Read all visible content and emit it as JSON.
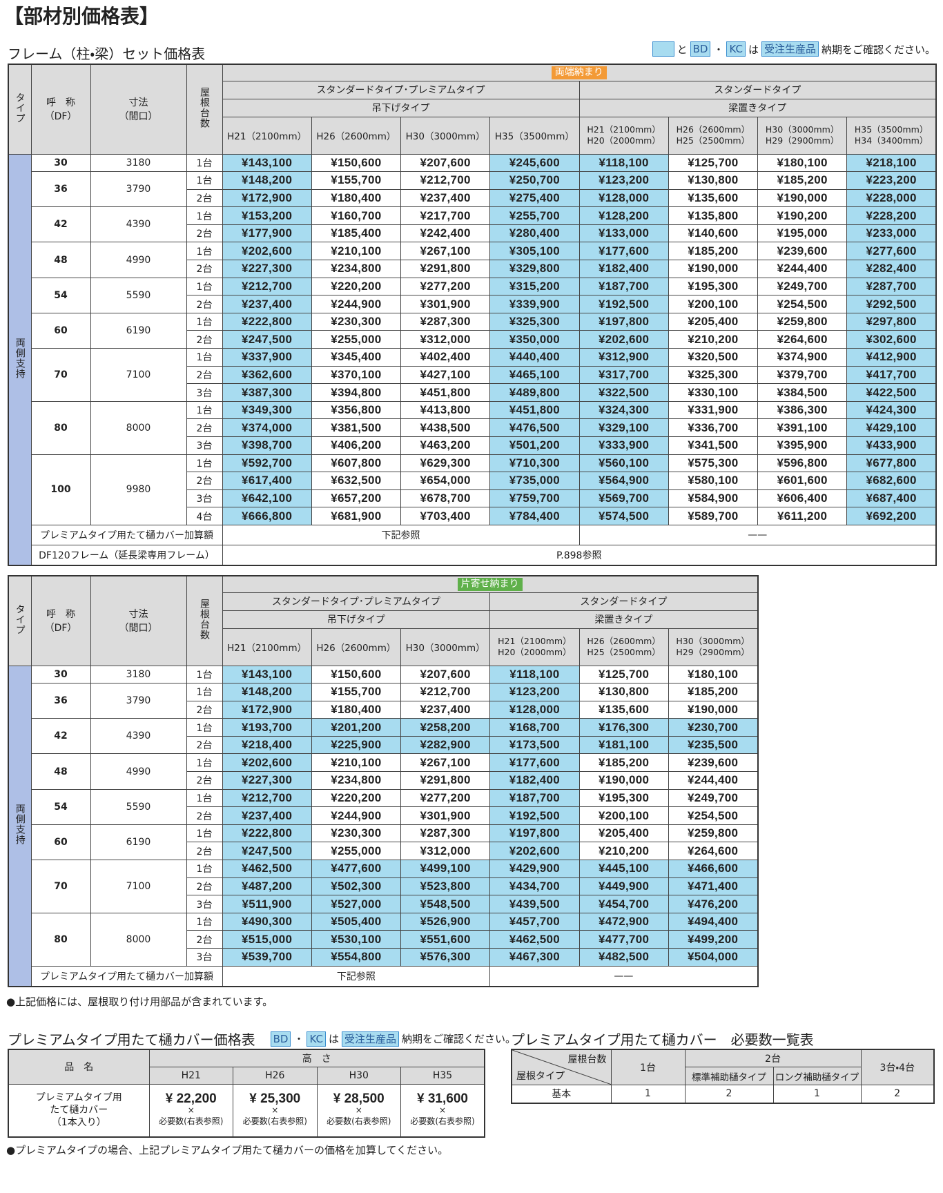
{
  "header": {
    "title": "【部材別価格表】",
    "subtitle": "フレーム（柱・梁）セット価格表"
  },
  "notice": {
    "and": "と",
    "bd": "BD",
    "dot": "・",
    "kc": "KC",
    "wa": "は",
    "made_to_order": "受注生産品",
    "text": "納期をご確認ください。"
  },
  "table1": {
    "badge": "両端納まり",
    "badge_color": "#f39a36",
    "type_label": "タイプ",
    "name_label": [
      "呼　称",
      "（DF）"
    ],
    "size_label": [
      "寸法",
      "（間口）"
    ],
    "roof_label": "屋根台数",
    "group_left": "スタンダードタイプ･プレミアムタイプ",
    "sub_left": "吊下げタイプ",
    "group_right": "スタンダードタイプ",
    "sub_right": "梁置きタイプ",
    "heights_left": [
      "H21（2100mm）",
      "H26（2600mm）",
      "H30（3000mm）",
      "H35（3500mm）"
    ],
    "heights_right": [
      [
        "H21（2100mm）",
        "H20（2000mm）"
      ],
      [
        "H26（2600mm）",
        "H25（2500mm）"
      ],
      [
        "H30（3000mm）",
        "H29（2900mm）"
      ],
      [
        "H35（3500mm）",
        "H34（3400mm）"
      ]
    ],
    "highlight_columns": [
      0,
      3,
      4,
      7
    ],
    "support": "両側支持",
    "groups": [
      {
        "df": "30",
        "size": "3180",
        "rows": [
          {
            "count": "1台",
            "prices": [
              "¥143,100",
              "¥150,600",
              "¥207,600",
              "¥245,600",
              "¥118,100",
              "¥125,700",
              "¥180,100",
              "¥218,100"
            ]
          }
        ]
      },
      {
        "df": "36",
        "size": "3790",
        "rows": [
          {
            "count": "1台",
            "prices": [
              "¥148,200",
              "¥155,700",
              "¥212,700",
              "¥250,700",
              "¥123,200",
              "¥130,800",
              "¥185,200",
              "¥223,200"
            ]
          },
          {
            "count": "2台",
            "prices": [
              "¥172,900",
              "¥180,400",
              "¥237,400",
              "¥275,400",
              "¥128,000",
              "¥135,600",
              "¥190,000",
              "¥228,000"
            ]
          }
        ]
      },
      {
        "df": "42",
        "size": "4390",
        "rows": [
          {
            "count": "1台",
            "prices": [
              "¥153,200",
              "¥160,700",
              "¥217,700",
              "¥255,700",
              "¥128,200",
              "¥135,800",
              "¥190,200",
              "¥228,200"
            ]
          },
          {
            "count": "2台",
            "prices": [
              "¥177,900",
              "¥185,400",
              "¥242,400",
              "¥280,400",
              "¥133,000",
              "¥140,600",
              "¥195,000",
              "¥233,000"
            ]
          }
        ]
      },
      {
        "df": "48",
        "size": "4990",
        "rows": [
          {
            "count": "1台",
            "prices": [
              "¥202,600",
              "¥210,100",
              "¥267,100",
              "¥305,100",
              "¥177,600",
              "¥185,200",
              "¥239,600",
              "¥277,600"
            ]
          },
          {
            "count": "2台",
            "prices": [
              "¥227,300",
              "¥234,800",
              "¥291,800",
              "¥329,800",
              "¥182,400",
              "¥190,000",
              "¥244,400",
              "¥282,400"
            ]
          }
        ]
      },
      {
        "df": "54",
        "size": "5590",
        "rows": [
          {
            "count": "1台",
            "prices": [
              "¥212,700",
              "¥220,200",
              "¥277,200",
              "¥315,200",
              "¥187,700",
              "¥195,300",
              "¥249,700",
              "¥287,700"
            ]
          },
          {
            "count": "2台",
            "prices": [
              "¥237,400",
              "¥244,900",
              "¥301,900",
              "¥339,900",
              "¥192,500",
              "¥200,100",
              "¥254,500",
              "¥292,500"
            ]
          }
        ]
      },
      {
        "df": "60",
        "size": "6190",
        "rows": [
          {
            "count": "1台",
            "prices": [
              "¥222,800",
              "¥230,300",
              "¥287,300",
              "¥325,300",
              "¥197,800",
              "¥205,400",
              "¥259,800",
              "¥297,800"
            ]
          },
          {
            "count": "2台",
            "prices": [
              "¥247,500",
              "¥255,000",
              "¥312,000",
              "¥350,000",
              "¥202,600",
              "¥210,200",
              "¥264,600",
              "¥302,600"
            ]
          }
        ]
      },
      {
        "df": "70",
        "size": "7100",
        "rows": [
          {
            "count": "1台",
            "prices": [
              "¥337,900",
              "¥345,400",
              "¥402,400",
              "¥440,400",
              "¥312,900",
              "¥320,500",
              "¥374,900",
              "¥412,900"
            ]
          },
          {
            "count": "2台",
            "prices": [
              "¥362,600",
              "¥370,100",
              "¥427,100",
              "¥465,100",
              "¥317,700",
              "¥325,300",
              "¥379,700",
              "¥417,700"
            ]
          },
          {
            "count": "3台",
            "prices": [
              "¥387,300",
              "¥394,800",
              "¥451,800",
              "¥489,800",
              "¥322,500",
              "¥330,100",
              "¥384,500",
              "¥422,500"
            ]
          }
        ]
      },
      {
        "df": "80",
        "size": "8000",
        "rows": [
          {
            "count": "1台",
            "prices": [
              "¥349,300",
              "¥356,800",
              "¥413,800",
              "¥451,800",
              "¥324,300",
              "¥331,900",
              "¥386,300",
              "¥424,300"
            ]
          },
          {
            "count": "2台",
            "prices": [
              "¥374,000",
              "¥381,500",
              "¥438,500",
              "¥476,500",
              "¥329,100",
              "¥336,700",
              "¥391,100",
              "¥429,100"
            ]
          },
          {
            "count": "3台",
            "prices": [
              "¥398,700",
              "¥406,200",
              "¥463,200",
              "¥501,200",
              "¥333,900",
              "¥341,500",
              "¥395,900",
              "¥433,900"
            ]
          }
        ]
      },
      {
        "df": "100",
        "size": "9980",
        "rows": [
          {
            "count": "1台",
            "prices": [
              "¥592,700",
              "¥607,800",
              "¥629,300",
              "¥710,300",
              "¥560,100",
              "¥575,300",
              "¥596,800",
              "¥677,800"
            ]
          },
          {
            "count": "2台",
            "prices": [
              "¥617,400",
              "¥632,500",
              "¥654,000",
              "¥735,000",
              "¥564,900",
              "¥580,100",
              "¥601,600",
              "¥682,600"
            ]
          },
          {
            "count": "3台",
            "prices": [
              "¥642,100",
              "¥657,200",
              "¥678,700",
              "¥759,700",
              "¥569,700",
              "¥584,900",
              "¥606,400",
              "¥687,400"
            ]
          },
          {
            "count": "4台",
            "prices": [
              "¥666,800",
              "¥681,900",
              "¥703,400",
              "¥784,400",
              "¥574,500",
              "¥589,700",
              "¥611,200",
              "¥692,200"
            ]
          }
        ]
      }
    ],
    "footers": [
      {
        "label": "プレミアムタイプ用たて樋カバー加算額",
        "cells": [
          "下記参照",
          "——"
        ]
      },
      {
        "label": "DF120フレーム（延長梁専用フレーム）",
        "cells": [
          "P.898参照"
        ]
      }
    ]
  },
  "table2": {
    "badge": "片寄せ納まり",
    "badge_color": "#5fb04a",
    "type_label": "タイプ",
    "name_label": [
      "呼　称",
      "（DF）"
    ],
    "size_label": [
      "寸法",
      "（間口）"
    ],
    "roof_label": "屋根台数",
    "group_left": "スタンダードタイプ･プレミアムタイプ",
    "sub_left": "吊下げタイプ",
    "group_right": "スタンダードタイプ",
    "sub_right": "梁置きタイプ",
    "heights_left": [
      "H21（2100mm）",
      "H26（2600mm）",
      "H30（3000mm）"
    ],
    "heights_right": [
      [
        "H21（2100mm）",
        "H20（2000mm）"
      ],
      [
        "H26（2600mm）",
        "H25（2500mm）"
      ],
      [
        "H30（3000mm）",
        "H29（2900mm）"
      ]
    ],
    "highlight_columns": [
      0,
      3
    ],
    "support": "両側支持",
    "groups": [
      {
        "df": "30",
        "size": "3180",
        "rows": [
          {
            "count": "1台",
            "prices": [
              "¥143,100",
              "¥150,600",
              "¥207,600",
              "¥118,100",
              "¥125,700",
              "¥180,100"
            ]
          }
        ]
      },
      {
        "df": "36",
        "size": "3790",
        "rows": [
          {
            "count": "1台",
            "prices": [
              "¥148,200",
              "¥155,700",
              "¥212,700",
              "¥123,200",
              "¥130,800",
              "¥185,200"
            ]
          },
          {
            "count": "2台",
            "prices": [
              "¥172,900",
              "¥180,400",
              "¥237,400",
              "¥128,000",
              "¥135,600",
              "¥190,000"
            ]
          }
        ]
      },
      {
        "df": "42",
        "size": "4390",
        "highlight": "all",
        "rows": [
          {
            "count": "1台",
            "prices": [
              "¥193,700",
              "¥201,200",
              "¥258,200",
              "¥168,700",
              "¥176,300",
              "¥230,700"
            ]
          },
          {
            "count": "2台",
            "prices": [
              "¥218,400",
              "¥225,900",
              "¥282,900",
              "¥173,500",
              "¥181,100",
              "¥235,500"
            ]
          }
        ]
      },
      {
        "df": "48",
        "size": "4990",
        "rows": [
          {
            "count": "1台",
            "prices": [
              "¥202,600",
              "¥210,100",
              "¥267,100",
              "¥177,600",
              "¥185,200",
              "¥239,600"
            ]
          },
          {
            "count": "2台",
            "prices": [
              "¥227,300",
              "¥234,800",
              "¥291,800",
              "¥182,400",
              "¥190,000",
              "¥244,400"
            ]
          }
        ]
      },
      {
        "df": "54",
        "size": "5590",
        "rows": [
          {
            "count": "1台",
            "prices": [
              "¥212,700",
              "¥220,200",
              "¥277,200",
              "¥187,700",
              "¥195,300",
              "¥249,700"
            ]
          },
          {
            "count": "2台",
            "prices": [
              "¥237,400",
              "¥244,900",
              "¥301,900",
              "¥192,500",
              "¥200,100",
              "¥254,500"
            ]
          }
        ]
      },
      {
        "df": "60",
        "size": "6190",
        "rows": [
          {
            "count": "1台",
            "prices": [
              "¥222,800",
              "¥230,300",
              "¥287,300",
              "¥197,800",
              "¥205,400",
              "¥259,800"
            ]
          },
          {
            "count": "2台",
            "prices": [
              "¥247,500",
              "¥255,000",
              "¥312,000",
              "¥202,600",
              "¥210,200",
              "¥264,600"
            ]
          }
        ]
      },
      {
        "df": "70",
        "size": "7100",
        "highlight": "all",
        "rows": [
          {
            "count": "1台",
            "prices": [
              "¥462,500",
              "¥477,600",
              "¥499,100",
              "¥429,900",
              "¥445,100",
              "¥466,600"
            ]
          },
          {
            "count": "2台",
            "prices": [
              "¥487,200",
              "¥502,300",
              "¥523,800",
              "¥434,700",
              "¥449,900",
              "¥471,400"
            ]
          },
          {
            "count": "3台",
            "prices": [
              "¥511,900",
              "¥527,000",
              "¥548,500",
              "¥439,500",
              "¥454,700",
              "¥476,200"
            ]
          }
        ]
      },
      {
        "df": "80",
        "size": "8000",
        "highlight": "all",
        "rows": [
          {
            "count": "1台",
            "prices": [
              "¥490,300",
              "¥505,400",
              "¥526,900",
              "¥457,700",
              "¥472,900",
              "¥494,400"
            ]
          },
          {
            "count": "2台",
            "prices": [
              "¥515,000",
              "¥530,100",
              "¥551,600",
              "¥462,500",
              "¥477,700",
              "¥499,200"
            ]
          },
          {
            "count": "3台",
            "prices": [
              "¥539,700",
              "¥554,800",
              "¥576,300",
              "¥467,300",
              "¥482,500",
              "¥504,000"
            ]
          }
        ]
      }
    ],
    "footers": [
      {
        "label": "プレミアムタイプ用たて樋カバー加算額",
        "cells": [
          "下記参照",
          "——"
        ]
      }
    ]
  },
  "note1": "●上記価格には、屋根取り付け用部品が含まれています。",
  "cover": {
    "title": "プレミアムタイプ用たて樋カバー価格表",
    "item_header": "品　名",
    "height_header": "高　さ",
    "heights": [
      "H21",
      "H26",
      "H30",
      "H35"
    ],
    "item": [
      "プレミアムタイプ用",
      "たて樋カバー",
      "（1本入り）"
    ],
    "prices": [
      "¥ 22,200",
      "¥ 25,300",
      "¥ 28,500",
      "¥ 31,600"
    ],
    "times": "×",
    "required": "必要数(右表参照)"
  },
  "required": {
    "title": "プレミアムタイプ用たて樋カバー　必要数一覧表",
    "corner_top": "屋根台数",
    "corner_bottom": "屋根タイプ",
    "col1": "1台",
    "col2": "2台",
    "col2_sub": [
      "標準補助樋タイプ",
      "ロング補助樋タイプ"
    ],
    "col3": "3台・4台",
    "row_label": "基本",
    "values": [
      "1",
      "2",
      "1",
      "2"
    ]
  },
  "note2": "●プレミアムタイプの場合、上記プレミアムタイプ用たて樋カバーの価格を加算してください。"
}
